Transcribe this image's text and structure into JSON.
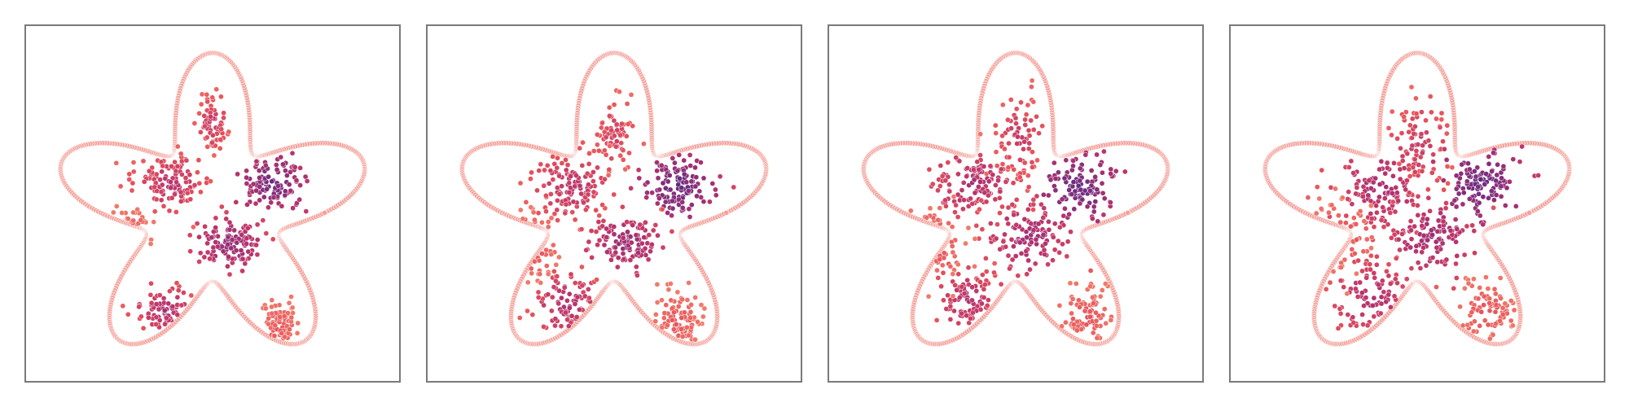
{
  "figure": {
    "background": "#ffffff",
    "frame_color": "#7a7a7a"
  },
  "chart_data": [
    {
      "type": "scatter",
      "panel": 1,
      "title": "",
      "xlabel": "",
      "ylabel": "",
      "grid": false,
      "boundary": {
        "shape": "five-lobed starfish",
        "color": "#f4a39c"
      },
      "colormap": [
        "#3a1b5e",
        "#6e2c82",
        "#b8336d",
        "#e8525a",
        "#f07a6a"
      ],
      "clusters": [
        {
          "center": [
            0.0,
            0.55
          ],
          "spread": [
            0.05,
            0.09
          ],
          "count": 70,
          "level": 0.55
        },
        {
          "center": [
            -0.26,
            0.18
          ],
          "spread": [
            0.11,
            0.09
          ],
          "count": 120,
          "level": 0.5
        },
        {
          "center": [
            0.38,
            0.18
          ],
          "spread": [
            0.1,
            0.09
          ],
          "count": 110,
          "level": 0.25
        },
        {
          "center": [
            0.1,
            -0.2
          ],
          "spread": [
            0.11,
            0.09
          ],
          "count": 120,
          "level": 0.35
        },
        {
          "center": [
            -0.3,
            -0.62
          ],
          "spread": [
            0.09,
            0.08
          ],
          "count": 75,
          "level": 0.45
        },
        {
          "center": [
            0.42,
            -0.72
          ],
          "spread": [
            0.06,
            0.09
          ],
          "count": 80,
          "level": 0.75
        },
        {
          "center": [
            -0.5,
            -0.12
          ],
          "spread": [
            0.05,
            0.07
          ],
          "count": 25,
          "level": 0.75
        }
      ]
    },
    {
      "type": "scatter",
      "panel": 2,
      "title": "",
      "xlabel": "",
      "ylabel": "",
      "grid": false,
      "boundary": {
        "shape": "five-lobed starfish",
        "color": "#f4a39c"
      },
      "colormap": [
        "#3a1b5e",
        "#6e2c82",
        "#b8336d",
        "#e8525a",
        "#f07a6a"
      ],
      "clusters": [
        {
          "center": [
            0.0,
            0.48
          ],
          "spread": [
            0.07,
            0.12
          ],
          "count": 70,
          "level": 0.6
        },
        {
          "center": [
            -0.26,
            0.16
          ],
          "spread": [
            0.12,
            0.11
          ],
          "count": 125,
          "level": 0.5
        },
        {
          "center": [
            0.4,
            0.16
          ],
          "spread": [
            0.11,
            0.1
          ],
          "count": 115,
          "level": 0.22
        },
        {
          "center": [
            0.08,
            -0.2
          ],
          "spread": [
            0.12,
            0.1
          ],
          "count": 120,
          "level": 0.38
        },
        {
          "center": [
            -0.3,
            -0.58
          ],
          "spread": [
            0.1,
            0.1
          ],
          "count": 85,
          "level": 0.45
        },
        {
          "center": [
            0.4,
            -0.7
          ],
          "spread": [
            0.08,
            0.1
          ],
          "count": 85,
          "level": 0.75
        },
        {
          "center": [
            -0.52,
            -0.22
          ],
          "spread": [
            0.07,
            0.1
          ],
          "count": 35,
          "level": 0.7
        }
      ]
    },
    {
      "type": "scatter",
      "panel": 3,
      "title": "",
      "xlabel": "",
      "ylabel": "",
      "grid": false,
      "boundary": {
        "shape": "five-lobed starfish",
        "color": "#f4a39c"
      },
      "colormap": [
        "#3a1b5e",
        "#6e2c82",
        "#b8336d",
        "#e8525a",
        "#f07a6a"
      ],
      "clusters": [
        {
          "center": [
            0.02,
            0.45
          ],
          "spread": [
            0.08,
            0.13
          ],
          "count": 75,
          "level": 0.55
        },
        {
          "center": [
            -0.26,
            0.18
          ],
          "spread": [
            0.14,
            0.12
          ],
          "count": 125,
          "level": 0.45
        },
        {
          "center": [
            0.4,
            0.16
          ],
          "spread": [
            0.12,
            0.11
          ],
          "count": 115,
          "level": 0.22
        },
        {
          "center": [
            0.1,
            -0.16
          ],
          "spread": [
            0.14,
            0.12
          ],
          "count": 125,
          "level": 0.4
        },
        {
          "center": [
            -0.3,
            -0.56
          ],
          "spread": [
            0.12,
            0.11
          ],
          "count": 90,
          "level": 0.48
        },
        {
          "center": [
            0.44,
            -0.66
          ],
          "spread": [
            0.09,
            0.11
          ],
          "count": 80,
          "level": 0.75
        },
        {
          "center": [
            -0.52,
            -0.2
          ],
          "spread": [
            0.09,
            0.12
          ],
          "count": 40,
          "level": 0.72
        }
      ]
    },
    {
      "type": "scatter",
      "panel": 4,
      "title": "",
      "xlabel": "",
      "ylabel": "",
      "grid": false,
      "boundary": {
        "shape": "five-lobed starfish",
        "color": "#f4a39c"
      },
      "colormap": [
        "#3a1b5e",
        "#6e2c82",
        "#b8336d",
        "#e8525a",
        "#f07a6a"
      ],
      "clusters": [
        {
          "center": [
            0.02,
            0.42
          ],
          "spread": [
            0.1,
            0.14
          ],
          "count": 75,
          "level": 0.55
        },
        {
          "center": [
            -0.22,
            0.16
          ],
          "spread": [
            0.15,
            0.13
          ],
          "count": 125,
          "level": 0.42
        },
        {
          "center": [
            0.4,
            0.18
          ],
          "spread": [
            0.13,
            0.12
          ],
          "count": 115,
          "level": 0.22
        },
        {
          "center": [
            0.1,
            -0.16
          ],
          "spread": [
            0.15,
            0.13
          ],
          "count": 125,
          "level": 0.4
        },
        {
          "center": [
            -0.28,
            -0.54
          ],
          "spread": [
            0.13,
            0.12
          ],
          "count": 90,
          "level": 0.45
        },
        {
          "center": [
            0.44,
            -0.64
          ],
          "spread": [
            0.1,
            0.12
          ],
          "count": 80,
          "level": 0.75
        },
        {
          "center": [
            -0.46,
            -0.16
          ],
          "spread": [
            0.1,
            0.13
          ],
          "count": 45,
          "level": 0.72
        }
      ]
    }
  ]
}
